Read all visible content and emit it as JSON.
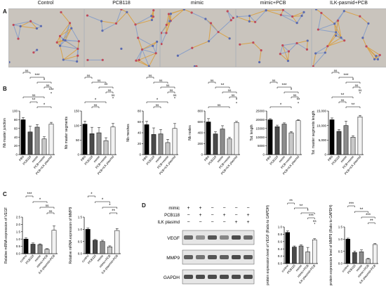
{
  "panel_letters": {
    "A": "A",
    "B": "B",
    "C": "C",
    "D": "D"
  },
  "panel_a": {
    "titles": [
      "Control",
      "PCB118",
      "mimic",
      "mimic+PCB",
      "ILK-pasmid+PCB"
    ]
  },
  "colors": {
    "bar_black": "#000000",
    "bar_dark_gray": "#4a4a4a",
    "bar_gray": "#8c8c8c",
    "bar_light_gray": "#c8c8c8",
    "bar_white": "#f2f2f2",
    "micro_background": "#c9c4bd"
  },
  "chart_data": [
    {
      "type": "bar",
      "panel": "B1",
      "ylabel": "Nb master junction",
      "categories": [
        "PBS",
        "PCB118",
        "mimic",
        "PCB+mimic",
        "PCB+ILK plasmid"
      ],
      "values": [
        80,
        52,
        63,
        36,
        70
      ],
      "errors": [
        5,
        13,
        6,
        5,
        4
      ],
      "ylim": [
        0,
        100
      ],
      "ticks": [
        "0",
        "20",
        "40",
        "60",
        "80",
        "100"
      ],
      "sig": [
        "ns",
        "***",
        "*",
        "ns",
        "***",
        "ns",
        "**",
        "*"
      ]
    },
    {
      "type": "bar",
      "panel": "B2",
      "ylabel": "Nb master segments",
      "categories": [
        "PBS",
        "PCB118",
        "mimic",
        "PCB+mimic",
        "PCB+ILK plasmid"
      ],
      "values": [
        105,
        72,
        75,
        48,
        95
      ],
      "errors": [
        10,
        22,
        18,
        10,
        12
      ],
      "ylim": [
        0,
        150
      ],
      "ticks": [
        "0",
        "50",
        "100",
        "150"
      ],
      "sig": [
        "ns",
        "ns",
        "**",
        "ns",
        "ns",
        "*",
        "ns"
      ]
    },
    {
      "type": "bar",
      "panel": "B3",
      "ylabel": "Nb meshes",
      "categories": [
        "PBS",
        "PCB118",
        "mimic",
        "PCB+mimic",
        "PCB+ILK plasmid"
      ],
      "values": [
        55,
        37,
        38,
        22,
        48
      ],
      "errors": [
        6,
        12,
        8,
        6,
        9
      ],
      "ylim": [
        0,
        80
      ],
      "ticks": [
        "0",
        "20",
        "40",
        "60",
        "80"
      ],
      "sig": [
        "ns",
        "ns",
        "ns",
        "ns",
        "ns",
        "*",
        "ns"
      ]
    },
    {
      "type": "bar",
      "panel": "B4",
      "ylabel": "Nb nodes",
      "categories": [
        "PBS",
        "PCB118",
        "mimic",
        "PCB+mimic",
        "PCB+ILK plasmid"
      ],
      "values": [
        600,
        380,
        470,
        290,
        590
      ],
      "errors": [
        60,
        40,
        60,
        30,
        20
      ],
      "ylim": [
        0,
        800
      ],
      "ticks": [
        "0",
        "200",
        "400",
        "600",
        "800"
      ],
      "sig": [
        "ns",
        "**",
        "ns",
        "ns",
        "*",
        "ns"
      ]
    },
    {
      "type": "bar",
      "panel": "B5",
      "ylabel": "Tot. length",
      "categories": [
        "PBS",
        "PCB118",
        "mimic",
        "PCB+mimic",
        "PCB+ILK plasmid"
      ],
      "values": [
        20000,
        16000,
        17500,
        12500,
        19500
      ],
      "errors": [
        600,
        900,
        700,
        700,
        500
      ],
      "ylim": [
        0,
        25000
      ],
      "ticks": [
        "0",
        "5000",
        "10000",
        "15000",
        "20000",
        "25000"
      ],
      "sig": [
        "ns",
        "***",
        "*",
        "ns",
        "**",
        "*"
      ]
    },
    {
      "type": "bar",
      "panel": "B6",
      "ylabel": "Tot. master segments length",
      "categories": [
        "PBS",
        "PCB118",
        "mimic",
        "PCB+mimic",
        "PCB+ILK plasmid"
      ],
      "values": [
        12000,
        8000,
        10000,
        6000,
        13000
      ],
      "errors": [
        600,
        600,
        1500,
        500,
        500
      ],
      "ylim": [
        0,
        15000
      ],
      "ticks": [
        "0",
        "5,000",
        "10,000",
        "15,000"
      ],
      "sig": [
        "ns",
        "***",
        "*",
        "ns",
        "ns",
        "**",
        "ns",
        "**"
      ]
    },
    {
      "type": "bar",
      "panel": "C1",
      "ylabel": "Relative mRNA expression of VEGF",
      "categories": [
        "control",
        "PCB118",
        "mimic",
        "mimic+PCB",
        "ILK-plasmid+PCB"
      ],
      "values": [
        1.0,
        0.65,
        0.62,
        0.3,
        1.6
      ],
      "errors": [
        0.08,
        0.08,
        0.05,
        0.04,
        0.3
      ],
      "ylim": [
        0,
        2.5
      ],
      "ticks": [
        "0.0",
        "0.5",
        "1.0",
        "1.5",
        "2.0",
        "2.5"
      ],
      "sig": [
        "***",
        "*",
        "ns",
        "ns"
      ]
    },
    {
      "type": "bar",
      "panel": "C2",
      "ylabel": "Relative mRNA expression of MMP9",
      "categories": [
        "control",
        "PCB118",
        "mimic",
        "mimic+PCB",
        "ILK-plasmid+PCB"
      ],
      "values": [
        1.0,
        0.55,
        0.5,
        0.28,
        0.95
      ],
      "errors": [
        0.05,
        0.03,
        0.05,
        0.04,
        0.08
      ],
      "ylim": [
        0,
        1.5
      ],
      "ticks": [
        "0.0",
        "0.5",
        "1.0",
        "1.5"
      ],
      "sig": [
        "*",
        "*",
        "*",
        "**"
      ]
    },
    {
      "type": "bar",
      "panel": "D1",
      "ylabel": "protein expression level of VEGF (Ratio to GAPDH)",
      "categories": [
        "control",
        "PCB118",
        "mimic",
        "mimic+PCB",
        "ILK-plasmid+PCB"
      ],
      "values": [
        0.85,
        0.45,
        0.48,
        0.32,
        0.65
      ],
      "errors": [
        0.04,
        0.03,
        0.03,
        0.12,
        0.03
      ],
      "ylim": [
        0,
        1.0
      ],
      "ticks": [
        "0.0",
        "0.2",
        "0.4",
        "0.6",
        "0.8",
        "1.0"
      ],
      "sig": [
        "**",
        "**",
        "*",
        "***",
        "ns"
      ]
    },
    {
      "type": "bar",
      "panel": "D2",
      "ylabel": "protein expression level of MMP9 (Ratio to GAPDH)",
      "categories": [
        "control",
        "PCB118",
        "mimic",
        "mimic+PCB",
        "ILK-plasmid+PCB"
      ],
      "values": [
        1.0,
        0.45,
        0.48,
        0.18,
        0.78
      ],
      "errors": [
        0.04,
        0.06,
        0.08,
        0.03,
        0.04
      ],
      "ylim": [
        0,
        1.5
      ],
      "ticks": [
        "0.0",
        "0.5",
        "1.0",
        "1.5"
      ],
      "sig": [
        "***",
        "**",
        "***",
        "**"
      ]
    }
  ],
  "panel_d_blot": {
    "row_labels": [
      "mimic",
      "PCB118",
      "ILK plasimd"
    ],
    "treatment_matrix": [
      [
        "+",
        "+",
        "−",
        "−",
        "−",
        "−"
      ],
      [
        "−",
        "+",
        "−",
        "+",
        "−",
        "+"
      ],
      [
        "−",
        "−",
        "−",
        "−",
        "+",
        "+"
      ]
    ],
    "bands": [
      "VEGF",
      "MMP9",
      "GAPDH"
    ],
    "intensity": [
      [
        0.75,
        0.55,
        0.85,
        0.6,
        0.9,
        0.75
      ],
      [
        0.8,
        0.7,
        0.85,
        0.8,
        0.9,
        0.85
      ],
      [
        0.9,
        0.9,
        0.9,
        0.9,
        0.9,
        0.9
      ]
    ]
  }
}
